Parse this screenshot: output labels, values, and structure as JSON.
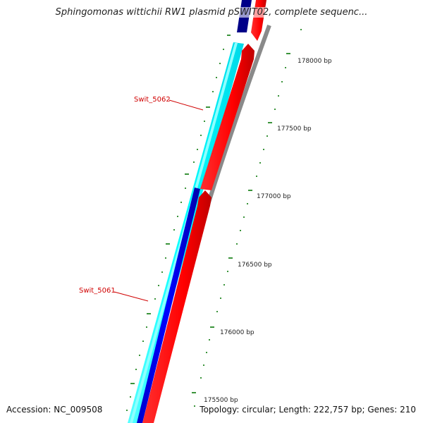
{
  "title": "Sphingomonas wittichii RW1 plasmid pSWIT02, complete sequenc...",
  "footer": {
    "accession": "Accession: NC_009508",
    "topology": "Topology: circular; Length: 222,757 bp; Genes: 210"
  },
  "genes": [
    {
      "label": "Swit_5062"
    },
    {
      "label": "Swit_5061"
    }
  ],
  "bp_labels": [
    "178000 bp",
    "177500 bp",
    "177000 bp",
    "176500 bp",
    "176000 bp",
    "175500 bp"
  ],
  "colors": {
    "cyan": "#00ffff",
    "navy": "#000088",
    "blue": "#0000ff",
    "red": "#ff0000",
    "darkred": "#b00000",
    "backbone": "#8a8a8a",
    "tick": "#0a7a0a",
    "label": "#d00000"
  }
}
